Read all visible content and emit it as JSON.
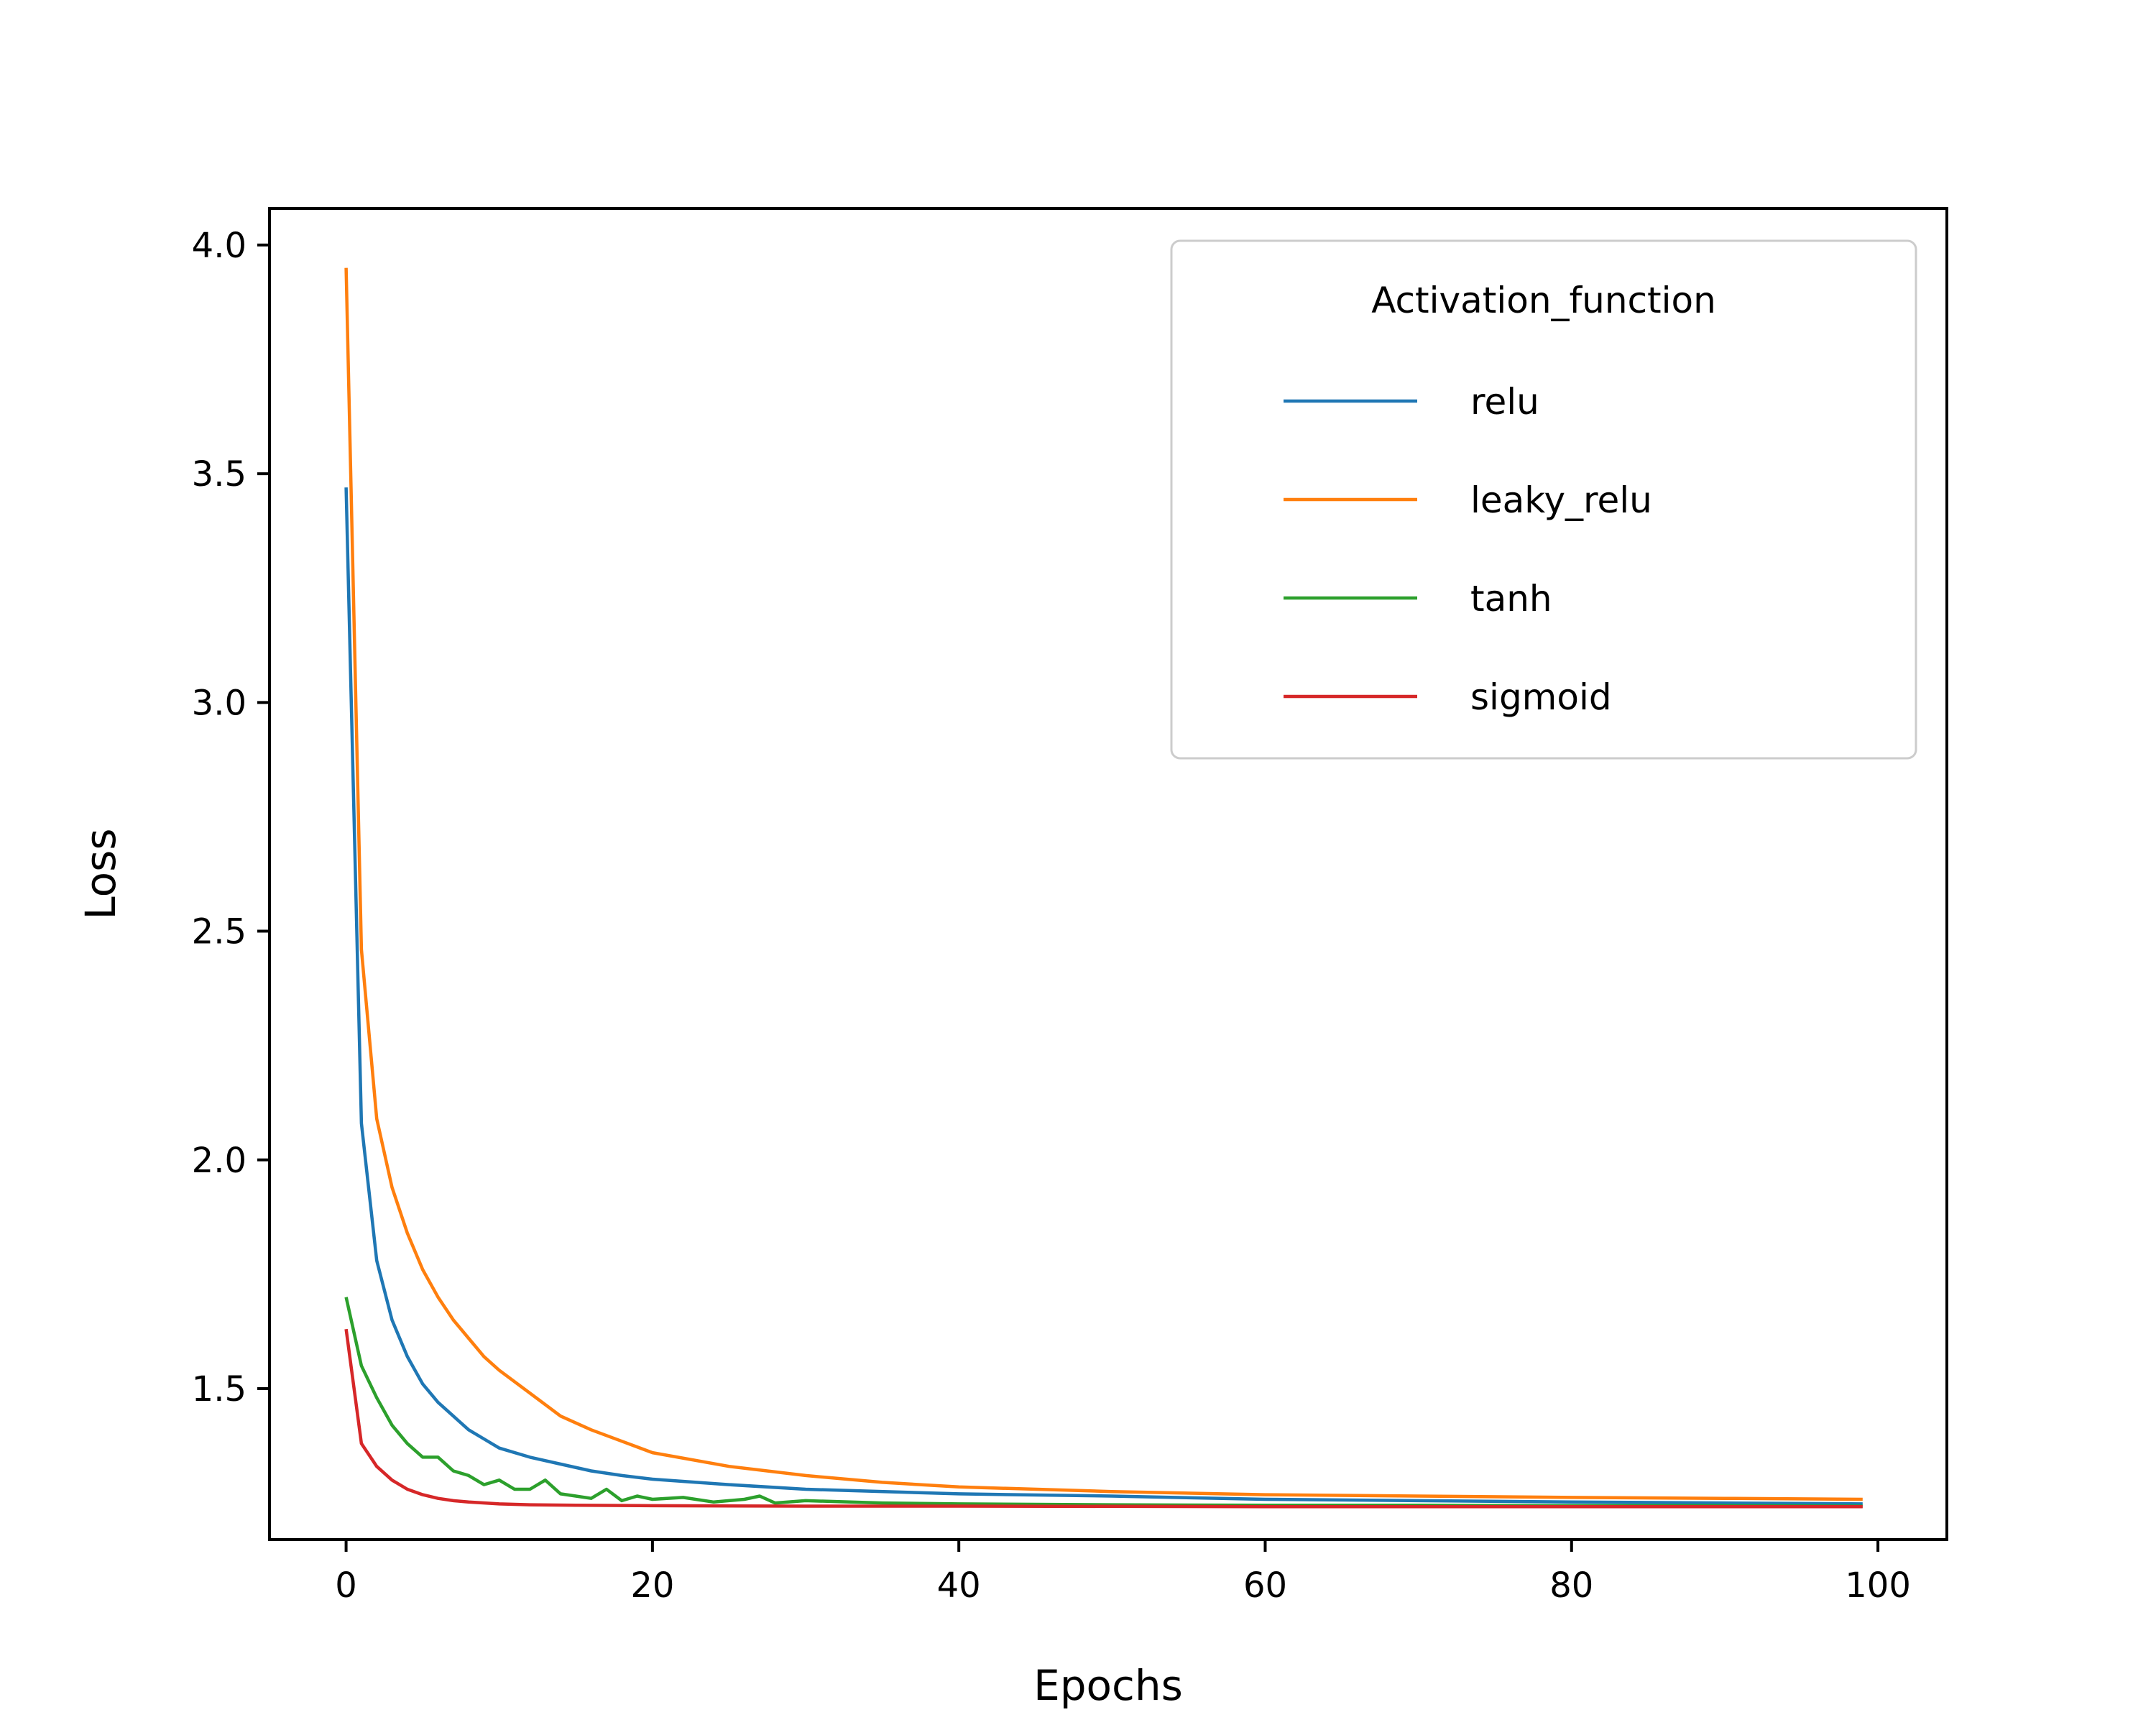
{
  "chart_data": {
    "type": "line",
    "title": "",
    "xlabel": "Epochs",
    "ylabel": "Loss",
    "xlim": [
      -5,
      104.5
    ],
    "ylim": [
      1.17,
      4.08
    ],
    "xticks": [
      0,
      20,
      40,
      60,
      80,
      100
    ],
    "yticks": [
      1.5,
      2.0,
      2.5,
      3.0,
      3.5,
      4.0
    ],
    "xtick_labels": [
      "0",
      "20",
      "40",
      "60",
      "80",
      "100"
    ],
    "ytick_labels": [
      "1.5",
      "2.0",
      "2.5",
      "3.0",
      "3.5",
      "4.0"
    ],
    "grid": false,
    "legend": {
      "title": "Activation_function",
      "position": "upper-right"
    },
    "series": [
      {
        "name": "relu",
        "color": "#1f77b4",
        "x": [
          0,
          1,
          2,
          3,
          4,
          5,
          6,
          7,
          8,
          9,
          10,
          12,
          14,
          16,
          18,
          20,
          25,
          30,
          40,
          50,
          60,
          70,
          80,
          90,
          99
        ],
        "y": [
          3.47,
          2.08,
          1.78,
          1.65,
          1.57,
          1.51,
          1.47,
          1.44,
          1.41,
          1.39,
          1.37,
          1.35,
          1.335,
          1.32,
          1.31,
          1.302,
          1.29,
          1.28,
          1.27,
          1.265,
          1.258,
          1.255,
          1.252,
          1.25,
          1.248
        ]
      },
      {
        "name": "leaky_relu",
        "color": "#ff7f0e",
        "x": [
          0,
          1,
          2,
          3,
          4,
          5,
          6,
          7,
          8,
          9,
          10,
          12,
          14,
          16,
          18,
          20,
          25,
          30,
          35,
          40,
          50,
          60,
          70,
          80,
          90,
          99
        ],
        "y": [
          3.95,
          2.46,
          2.09,
          1.94,
          1.84,
          1.76,
          1.7,
          1.65,
          1.61,
          1.57,
          1.54,
          1.49,
          1.44,
          1.41,
          1.385,
          1.36,
          1.33,
          1.31,
          1.295,
          1.285,
          1.275,
          1.268,
          1.265,
          1.262,
          1.26,
          1.258
        ]
      },
      {
        "name": "tanh",
        "color": "#2ca02c",
        "x": [
          0,
          1,
          2,
          3,
          4,
          5,
          6,
          7,
          8,
          9,
          10,
          11,
          12,
          13,
          14,
          15,
          16,
          17,
          18,
          19,
          20,
          22,
          24,
          26,
          27,
          28,
          30,
          35,
          40,
          50,
          60,
          70,
          80,
          90,
          99
        ],
        "y": [
          1.7,
          1.55,
          1.48,
          1.42,
          1.38,
          1.35,
          1.35,
          1.32,
          1.31,
          1.29,
          1.3,
          1.28,
          1.28,
          1.3,
          1.27,
          1.265,
          1.26,
          1.28,
          1.255,
          1.265,
          1.258,
          1.262,
          1.252,
          1.258,
          1.265,
          1.25,
          1.255,
          1.25,
          1.248,
          1.246,
          1.245,
          1.245,
          1.244,
          1.244,
          1.243
        ]
      },
      {
        "name": "sigmoid",
        "color": "#d62728",
        "x": [
          0,
          1,
          2,
          3,
          4,
          5,
          6,
          7,
          8,
          10,
          12,
          15,
          20,
          30,
          40,
          60,
          80,
          99
        ],
        "y": [
          1.63,
          1.38,
          1.33,
          1.3,
          1.28,
          1.268,
          1.26,
          1.255,
          1.252,
          1.248,
          1.246,
          1.245,
          1.244,
          1.243,
          1.243,
          1.242,
          1.242,
          1.242
        ]
      }
    ]
  }
}
